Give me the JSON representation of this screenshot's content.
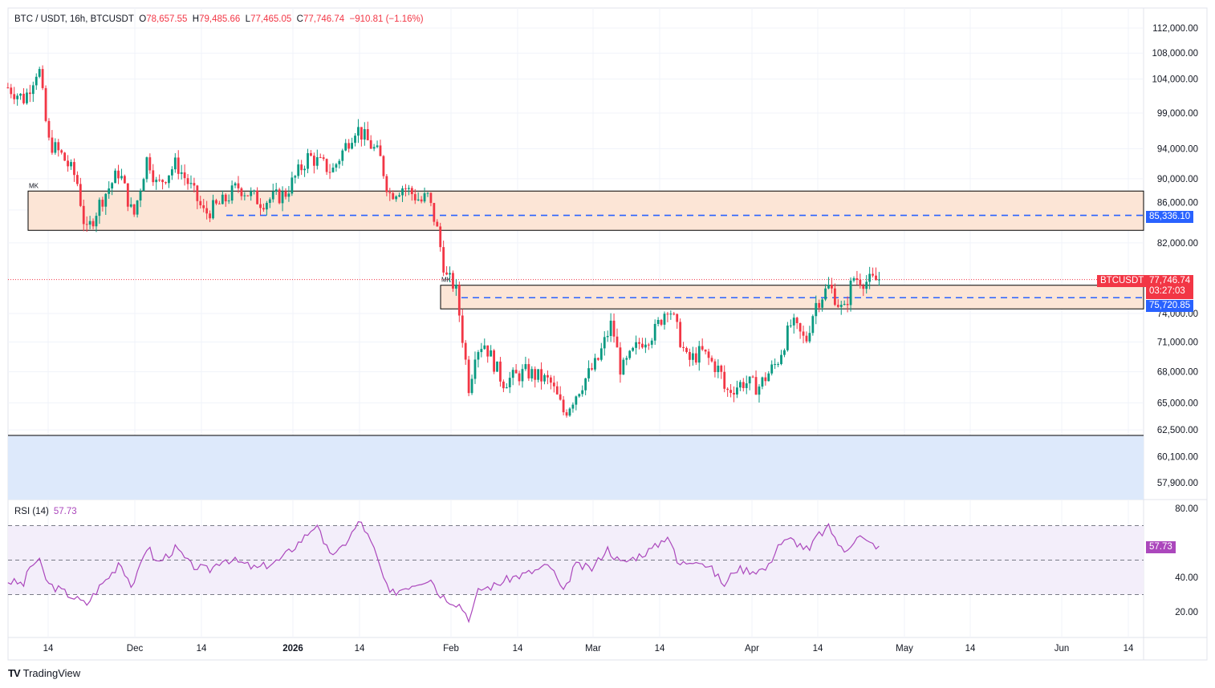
{
  "legend": {
    "symbol": "BTC / USDT, 16h, BTCUSDT",
    "o_label": "O",
    "open": "78,657.55",
    "h_label": "H",
    "high": "79,485.66",
    "l_label": "L",
    "low": "77,465.05",
    "c_label": "C",
    "close": "77,746.74",
    "change": "−910.81 (−1.16%)"
  },
  "price_axis": [
    "112,000.00",
    "108,000.00",
    "104,000.00",
    "99,000.00",
    "94,000.00",
    "90,000.00",
    "86,000.00",
    "82,000.00",
    "74,000.00",
    "71,000.00",
    "68,000.00",
    "65,000.00",
    "62,500.00",
    "60,100.00",
    "57,900.00"
  ],
  "price_axis_values": [
    112000,
    108000,
    104000,
    99000,
    94000,
    90000,
    86000,
    82000,
    74000,
    71000,
    68000,
    65000,
    62500,
    60100,
    57900
  ],
  "time_axis": [
    "14",
    "Dec",
    "14",
    "2026",
    "14",
    "Feb",
    "14",
    "Mar",
    "14",
    "Apr",
    "14",
    "May",
    "14",
    "Jun",
    "14"
  ],
  "tags": {
    "level1": "85,336.10",
    "level2": "75,720.85",
    "symbol": "BTCUSDT",
    "last_price": "77,746.74",
    "countdown": "03:27:03"
  },
  "zones": {
    "zone1_label": "MK",
    "zone2_label": "MK"
  },
  "rsi": {
    "label": "RSI (14)",
    "value": "57.73",
    "axis": [
      "80.00",
      "40.00",
      "20.00"
    ],
    "axis_values": [
      80,
      40,
      20
    ]
  },
  "logo": "TradingView",
  "colors": {
    "up": "#089981",
    "down": "#f23645",
    "zone": "#fce5d6",
    "demand": "#dde9fb",
    "level": "#2962ff",
    "rsi": "#ab47bc"
  },
  "chart_data": {
    "type": "candlestick",
    "symbol": "BTCUSDT",
    "interval": "16h",
    "ylim": [
      57900,
      112000
    ],
    "scale": "log",
    "levels": [
      85336.1,
      75720.85
    ],
    "zone1": [
      83500,
      88400
    ],
    "zone2": [
      74500,
      77100
    ],
    "demand_below": 62000,
    "last": 77746.74,
    "close_path_days": [
      [
        -7,
        102000
      ],
      [
        -5,
        101000
      ],
      [
        -2,
        106000
      ],
      [
        0,
        95000
      ],
      [
        3,
        93000
      ],
      [
        6,
        90000
      ],
      [
        8,
        83000
      ],
      [
        11,
        87000
      ],
      [
        15,
        91000
      ],
      [
        18,
        85000
      ],
      [
        21,
        93000
      ],
      [
        23,
        89000
      ],
      [
        27,
        92000
      ],
      [
        30,
        89000
      ],
      [
        33,
        85500
      ],
      [
        37,
        87000
      ],
      [
        40,
        89000
      ],
      [
        45,
        87000
      ],
      [
        50,
        88000
      ],
      [
        55,
        93000
      ],
      [
        60,
        91000
      ],
      [
        65,
        97000
      ],
      [
        70,
        93000
      ],
      [
        72,
        88000
      ],
      [
        75,
        89000
      ],
      [
        79,
        87000
      ],
      [
        80,
        88000
      ],
      [
        82,
        84000
      ],
      [
        84,
        78000
      ],
      [
        86,
        77000
      ],
      [
        89,
        66000
      ],
      [
        90,
        70000
      ],
      [
        92,
        71000
      ],
      [
        96,
        67000
      ],
      [
        101,
        68000
      ],
      [
        106,
        67000
      ],
      [
        109,
        64000
      ],
      [
        113,
        67000
      ],
      [
        116,
        69000
      ],
      [
        119,
        73000
      ],
      [
        121,
        68000
      ],
      [
        125,
        71000
      ],
      [
        128,
        72000
      ],
      [
        131,
        75000
      ],
      [
        135,
        69000
      ],
      [
        138,
        70000
      ],
      [
        142,
        68000
      ],
      [
        143,
        66000
      ],
      [
        147,
        67000
      ],
      [
        150,
        66500
      ],
      [
        154,
        69000
      ],
      [
        157,
        73000
      ],
      [
        160,
        71000
      ],
      [
        162,
        75000
      ],
      [
        165,
        77000
      ],
      [
        168,
        74000
      ],
      [
        170,
        78000
      ],
      [
        173,
        77500
      ],
      [
        176,
        77747
      ]
    ],
    "rsi_path_days": [
      [
        -7,
        37
      ],
      [
        -5,
        36
      ],
      [
        -4,
        46
      ],
      [
        -2,
        50
      ],
      [
        0,
        36
      ],
      [
        3,
        32
      ],
      [
        7,
        26
      ],
      [
        8,
        24
      ],
      [
        11,
        35
      ],
      [
        14,
        44
      ],
      [
        15,
        50
      ],
      [
        18,
        33
      ],
      [
        20,
        53
      ],
      [
        21,
        58
      ],
      [
        23,
        48
      ],
      [
        27,
        57
      ],
      [
        30,
        47
      ],
      [
        34,
        44
      ],
      [
        37,
        51
      ],
      [
        40,
        49
      ],
      [
        44,
        45
      ],
      [
        49,
        50
      ],
      [
        54,
        63
      ],
      [
        57,
        72
      ],
      [
        58,
        58
      ],
      [
        61,
        53
      ],
      [
        66,
        73
      ],
      [
        69,
        55
      ],
      [
        72,
        30
      ],
      [
        76,
        35
      ],
      [
        81,
        40
      ],
      [
        82,
        32
      ],
      [
        84,
        28
      ],
      [
        87,
        24
      ],
      [
        89,
        16
      ],
      [
        91,
        33
      ],
      [
        94,
        35
      ],
      [
        98,
        40
      ],
      [
        101,
        42
      ],
      [
        106,
        47
      ],
      [
        109,
        30
      ],
      [
        111,
        47
      ],
      [
        115,
        45
      ],
      [
        118,
        57
      ],
      [
        121,
        48
      ],
      [
        125,
        53
      ],
      [
        128,
        57
      ],
      [
        131,
        65
      ],
      [
        133,
        47
      ],
      [
        137,
        51
      ],
      [
        140,
        45
      ],
      [
        143,
        35
      ],
      [
        145,
        45
      ],
      [
        149,
        44
      ],
      [
        152,
        45
      ],
      [
        154,
        59
      ],
      [
        157,
        62
      ],
      [
        161,
        55
      ],
      [
        162,
        63
      ],
      [
        165,
        69
      ],
      [
        168,
        54
      ],
      [
        171,
        65
      ],
      [
        173,
        60
      ],
      [
        176,
        57.73
      ]
    ]
  }
}
